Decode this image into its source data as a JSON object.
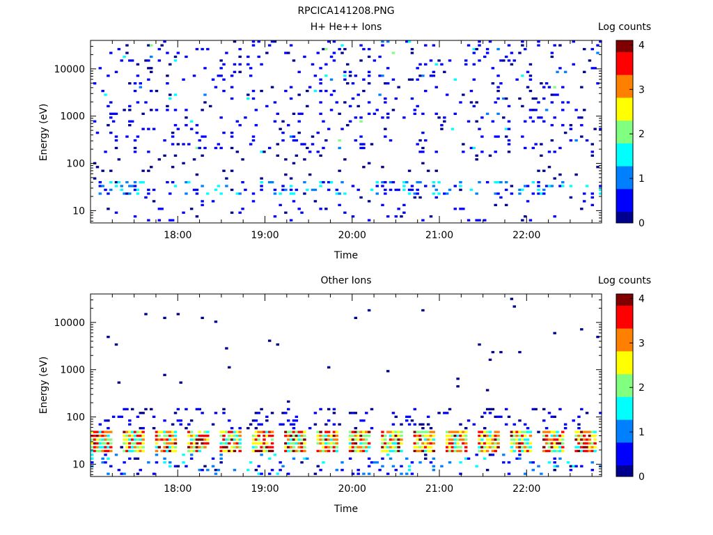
{
  "figure": {
    "title": "RPCICA141208.PNG"
  },
  "chart_data": [
    {
      "type": "heatmap",
      "title": "H+ He++ Ions",
      "xlabel": "Time",
      "ylabel": "Energy (eV)",
      "x_ticks": [
        "18:00",
        "19:00",
        "20:00",
        "21:00",
        "22:00"
      ],
      "y_ticks": [
        "10",
        "100",
        "1000",
        "10000"
      ],
      "y_scale": "log",
      "colorbar": {
        "label": "Log counts",
        "min": 0,
        "max": 4.1,
        "ticks": [
          "0",
          "1",
          "2",
          "3",
          "4"
        ]
      },
      "colormap": [
        "#00008f",
        "#0000ff",
        "#0080ff",
        "#00ffff",
        "#80ff80",
        "#ffff00",
        "#ff8000",
        "#ff0000",
        "#800000"
      ],
      "pattern": "sparse"
    },
    {
      "type": "heatmap",
      "title": "Other Ions",
      "xlabel": "Time",
      "ylabel": "Energy (eV)",
      "x_ticks": [
        "18:00",
        "19:00",
        "20:00",
        "21:00",
        "22:00"
      ],
      "y_ticks": [
        "10",
        "100",
        "1000",
        "10000"
      ],
      "y_scale": "log",
      "colorbar": {
        "label": "Log counts",
        "min": 0,
        "max": 4.1,
        "ticks": [
          "0",
          "1",
          "2",
          "3",
          "4"
        ]
      },
      "colormap": [
        "#00008f",
        "#0000ff",
        "#0080ff",
        "#00ffff",
        "#80ff80",
        "#ffff00",
        "#ff8000",
        "#ff0000",
        "#800000"
      ],
      "pattern": "lowband"
    }
  ]
}
